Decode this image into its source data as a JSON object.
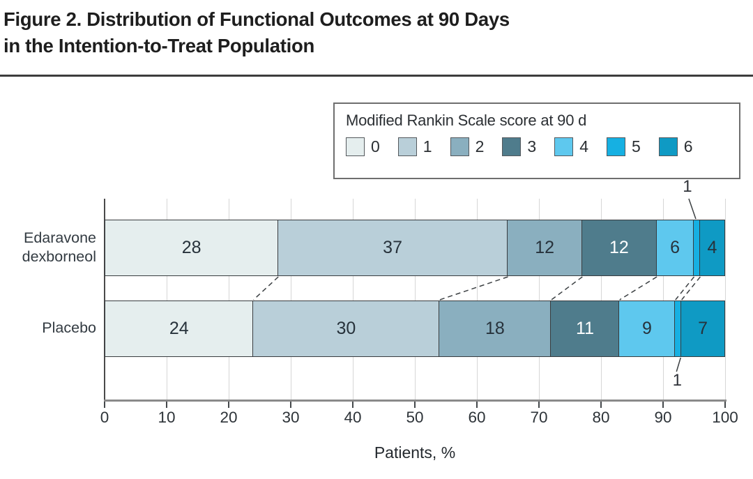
{
  "figure": {
    "title_line1": "Figure 2. Distribution of Functional Outcomes at 90 Days",
    "title_line2": "in the Intention-to-Treat Population"
  },
  "legend": {
    "title": "Modified Rankin Scale score at 90 d",
    "entries": [
      {
        "label": "0",
        "color": "#e5eeee"
      },
      {
        "label": "1",
        "color": "#b9cfd9"
      },
      {
        "label": "2",
        "color": "#8aafbf"
      },
      {
        "label": "3",
        "color": "#4f7c8c"
      },
      {
        "label": "4",
        "color": "#5ec8ee"
      },
      {
        "label": "5",
        "color": "#16b0e2"
      },
      {
        "label": "6",
        "color": "#0f9ac4"
      }
    ]
  },
  "chart_data": {
    "type": "bar",
    "orientation": "horizontal",
    "stacked": true,
    "title": "Distribution of Functional Outcomes at 90 Days in the Intention-to-Treat Population",
    "legend_title": "Modified Rankin Scale score at 90 d",
    "legend_position": "top-right",
    "grid": true,
    "categories": [
      {
        "name": "Edaravone dexborneol",
        "label_lines": [
          "Edaravone",
          "dexborneol"
        ]
      },
      {
        "name": "Placebo",
        "label_lines": [
          "Placebo"
        ]
      }
    ],
    "series": [
      {
        "name": "0",
        "color": "#e5eeee",
        "label_color": "#27323b",
        "values": [
          28,
          24
        ]
      },
      {
        "name": "1",
        "color": "#b9cfd9",
        "label_color": "#27323b",
        "values": [
          37,
          30
        ]
      },
      {
        "name": "2",
        "color": "#8aafbf",
        "label_color": "#27323b",
        "values": [
          12,
          18
        ]
      },
      {
        "name": "3",
        "color": "#4f7c8c",
        "label_color": "#ffffff",
        "values": [
          12,
          11
        ]
      },
      {
        "name": "4",
        "color": "#5ec8ee",
        "label_color": "#27323b",
        "values": [
          6,
          9
        ]
      },
      {
        "name": "5",
        "color": "#16b0e2",
        "label_color": "#27323b",
        "values": [
          1,
          1
        ]
      },
      {
        "name": "6",
        "color": "#0f9ac4",
        "label_color": "#27323b",
        "values": [
          4,
          7
        ]
      }
    ],
    "xlabel": "Patients, %",
    "xlim": [
      0,
      100
    ],
    "xticks": [
      0,
      10,
      20,
      30,
      40,
      50,
      60,
      70,
      80,
      90,
      100
    ],
    "annotations": [
      {
        "text": "1",
        "category_index": 0,
        "series_index": 5,
        "side": "above"
      },
      {
        "text": "1",
        "category_index": 1,
        "series_index": 5,
        "side": "below"
      }
    ]
  }
}
